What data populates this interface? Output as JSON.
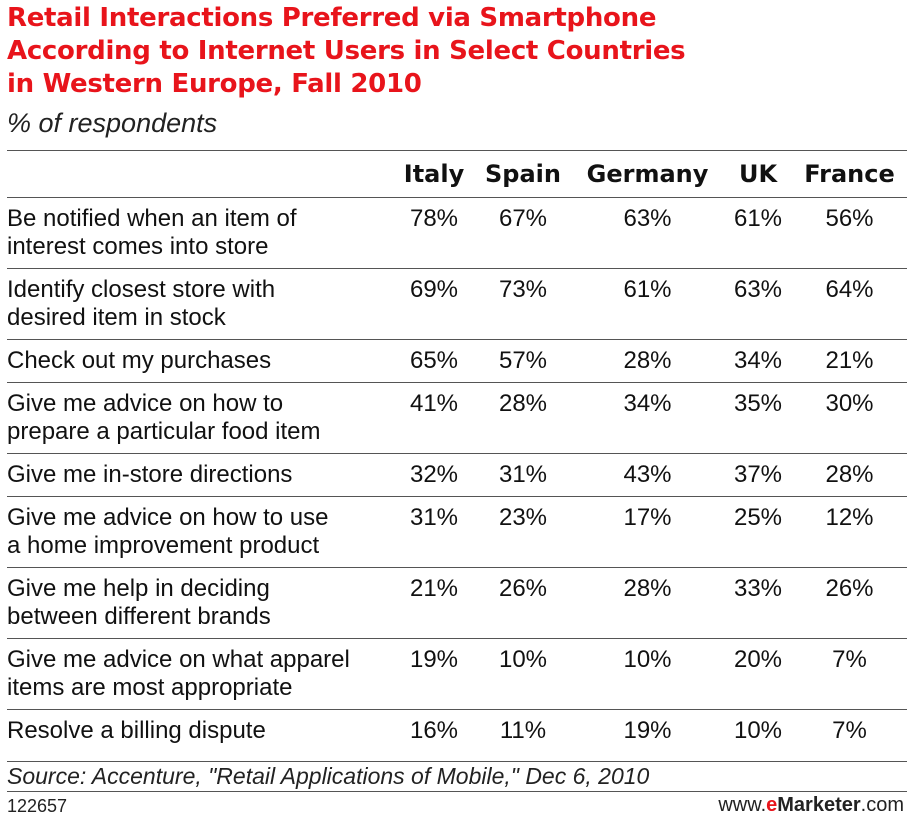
{
  "chart_data": {
    "type": "table",
    "title_lines": [
      "Retail Interactions Preferred via Smartphone",
      "According to Internet Users in Select Countries",
      "in Western Europe, Fall 2010"
    ],
    "subtitle": "% of respondents",
    "columns": [
      "Italy",
      "Spain",
      "Germany",
      "UK",
      "France"
    ],
    "rows": [
      {
        "label": [
          "Be notified when an item of",
          "interest comes into store"
        ],
        "values": [
          "78%",
          "67%",
          "63%",
          "61%",
          "56%"
        ]
      },
      {
        "label": [
          "Identify closest store with",
          "desired item in stock"
        ],
        "values": [
          "69%",
          "73%",
          "61%",
          "63%",
          "64%"
        ]
      },
      {
        "label": [
          "Check out my purchases"
        ],
        "values": [
          "65%",
          "57%",
          "28%",
          "34%",
          "21%"
        ]
      },
      {
        "label": [
          "Give me advice on how to",
          "prepare a particular food item"
        ],
        "values": [
          "41%",
          "28%",
          "34%",
          "35%",
          "30%"
        ]
      },
      {
        "label": [
          "Give me in-store directions"
        ],
        "values": [
          "32%",
          "31%",
          "43%",
          "37%",
          "28%"
        ]
      },
      {
        "label": [
          "Give me advice on how to use",
          "a home improvement product"
        ],
        "values": [
          "31%",
          "23%",
          "17%",
          "25%",
          "12%"
        ]
      },
      {
        "label": [
          "Give me help in deciding",
          "between different brands"
        ],
        "values": [
          "21%",
          "26%",
          "28%",
          "33%",
          "26%"
        ]
      },
      {
        "label": [
          "Give me advice on what apparel",
          "items are most appropriate"
        ],
        "values": [
          "19%",
          "10%",
          "10%",
          "20%",
          "7%"
        ]
      },
      {
        "label": [
          "Resolve a billing dispute"
        ],
        "values": [
          "16%",
          "11%",
          "19%",
          "10%",
          "7%"
        ]
      }
    ],
    "source": "Source: Accenture, \"Retail Applications of Mobile,\" Dec 6, 2010"
  },
  "footer": {
    "chart_id": "122657",
    "brand_prefix": "www.",
    "brand_e": "e",
    "brand_name": "Marketer",
    "brand_suffix": ".com"
  },
  "colors": {
    "title": "#e8141b",
    "text": "#111111",
    "rule": "#555555"
  }
}
